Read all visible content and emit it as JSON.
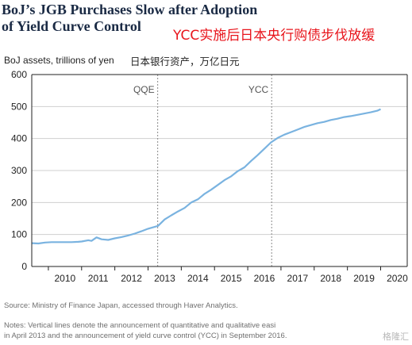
{
  "header": {
    "title_line1": "BoJ’s JGB Purchases Slow after Adoption",
    "title_line2": "of Yield Curve Control",
    "annotation_cn": "YCC实施后日本央行购债步伐放缓",
    "ylabel": "BoJ assets, trillions of yen",
    "ylabel_cn": "日本银行资产，万亿日元"
  },
  "footer": {
    "source": "Source: Ministry of Finance Japan, accessed through Haver Analytics.",
    "notes_line1": "Notes: Vertical lines denote the announcement of quantitative and qualitative easi",
    "notes_line2": "in April 2013 and the announcement of yield curve control (YCC) in September 2016.",
    "watermark": "格隆汇"
  },
  "colors": {
    "line": "#7ab3e0",
    "axis": "#222222",
    "grid": "#cfcfcf",
    "vline": "#8a8a8a",
    "title": "#1a2a44",
    "annotation": "#e8141b"
  },
  "chart_data": {
    "type": "line",
    "title": "BoJ’s JGB Purchases Slow after Adoption of Yield Curve Control",
    "ylabel": "BoJ assets, trillions of yen",
    "xlabel": "",
    "xlim": [
      2009.5,
      2020.8
    ],
    "ylim": [
      0,
      600
    ],
    "yticks": [
      0,
      100,
      200,
      300,
      400,
      500,
      600
    ],
    "xticks": [
      2010,
      2011,
      2012,
      2013,
      2014,
      2015,
      2016,
      2017,
      2018,
      2019,
      2020
    ],
    "grid": "horizontal",
    "vlines": [
      {
        "x": 2013.29,
        "label": "QQE"
      },
      {
        "x": 2016.72,
        "label": "YCC"
      }
    ],
    "series": [
      {
        "x": [
          2009.5,
          2009.7,
          2009.9,
          2010.1,
          2010.3,
          2010.5,
          2010.7,
          2010.9,
          2011.0,
          2011.2,
          2011.3,
          2011.45,
          2011.6,
          2011.8,
          2012.0,
          2012.2,
          2012.4,
          2012.6,
          2012.8,
          2013.0,
          2013.3,
          2013.5,
          2013.7,
          2013.9,
          2014.1,
          2014.3,
          2014.5,
          2014.7,
          2014.9,
          2015.1,
          2015.3,
          2015.5,
          2015.7,
          2015.9,
          2016.1,
          2016.3,
          2016.5,
          2016.7,
          2016.9,
          2017.1,
          2017.3,
          2017.5,
          2017.7,
          2017.9,
          2018.1,
          2018.3,
          2018.5,
          2018.7,
          2018.9,
          2019.1,
          2019.3,
          2019.5,
          2019.7,
          2019.9,
          2020.0
        ],
        "values": [
          73,
          72,
          75,
          76,
          76,
          76,
          76,
          77,
          78,
          82,
          80,
          91,
          85,
          83,
          88,
          92,
          97,
          103,
          110,
          118,
          127,
          147,
          160,
          172,
          183,
          200,
          210,
          227,
          240,
          255,
          270,
          282,
          298,
          310,
          330,
          348,
          368,
          388,
          402,
          412,
          420,
          428,
          436,
          442,
          448,
          452,
          458,
          462,
          467,
          470,
          474,
          478,
          482,
          487,
          492
        ]
      }
    ]
  }
}
